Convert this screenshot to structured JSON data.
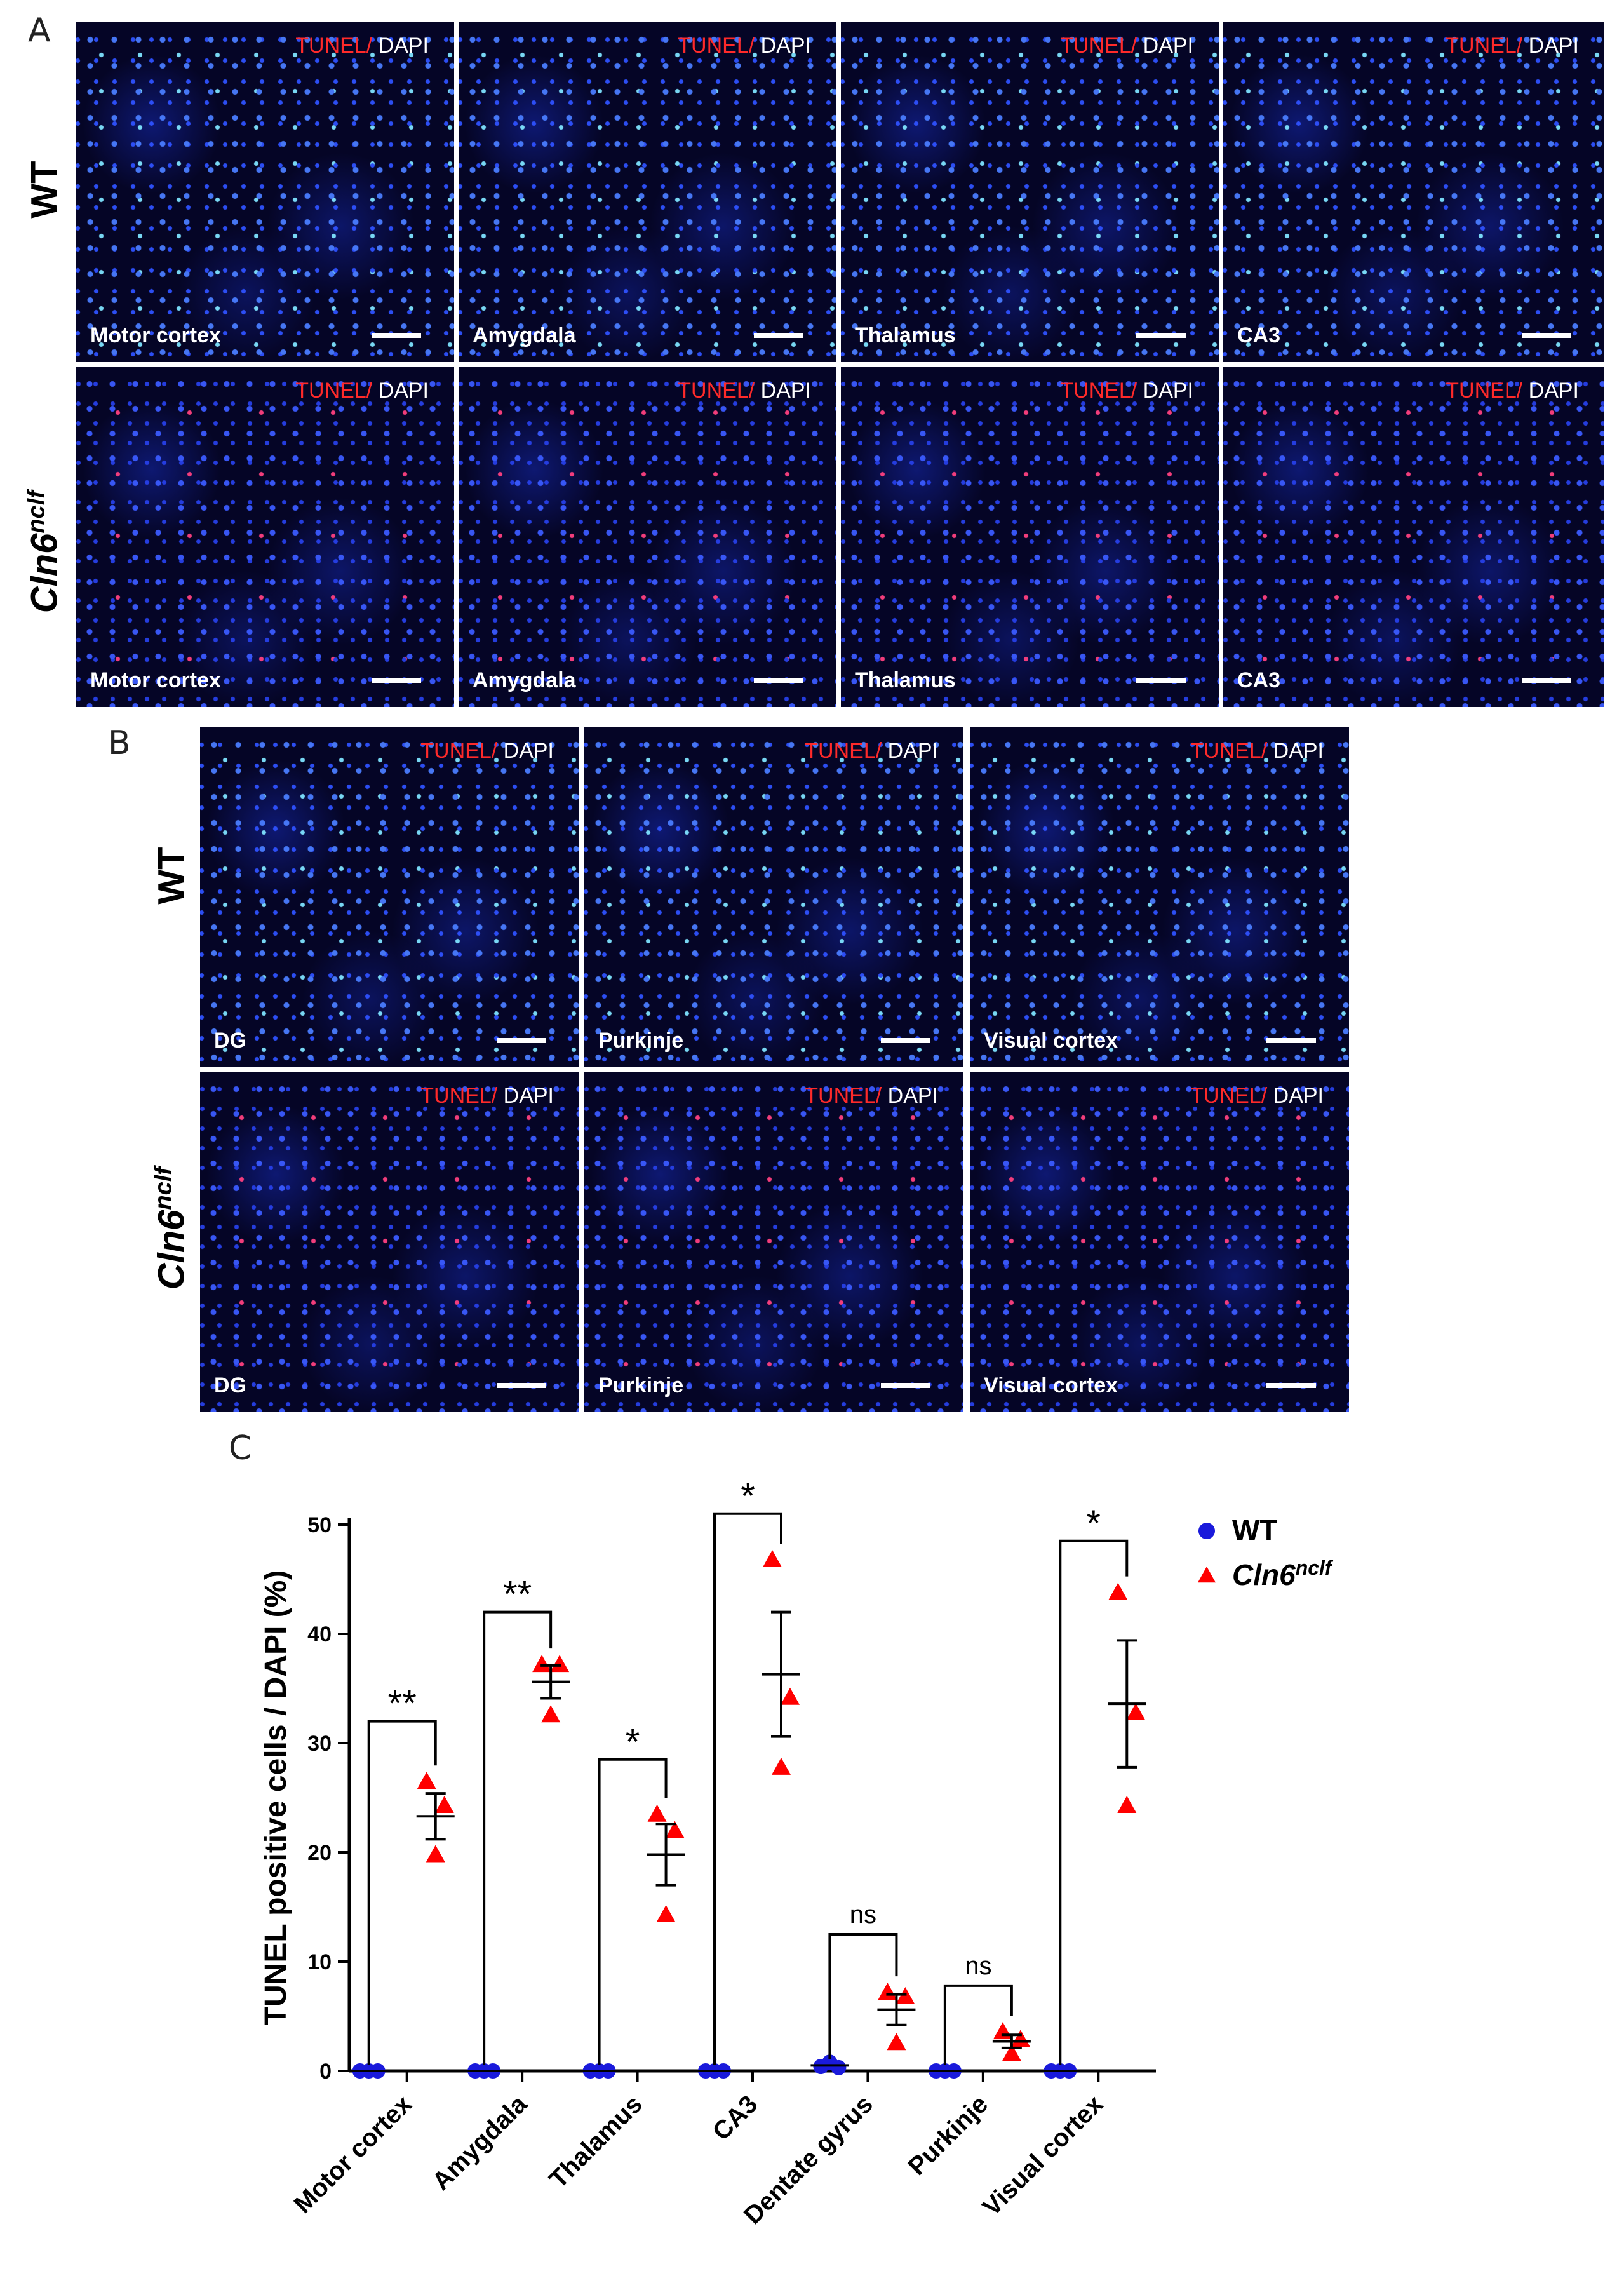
{
  "panel_labels": {
    "a": "A",
    "b": "B",
    "c": "C"
  },
  "rows": {
    "wt": "WT",
    "mutant_base": "Cln6",
    "mutant_sup": "nclf"
  },
  "stain": {
    "tunel": "TUNEL/",
    "dapi": " DAPI"
  },
  "panel_a": {
    "regions": [
      "Motor cortex",
      "Amygdala",
      "Thalamus",
      "CA3"
    ]
  },
  "panel_b": {
    "regions": [
      "DG",
      "Purkinje",
      "Visual cortex"
    ]
  },
  "colors": {
    "wt": "#1a1adb",
    "mutant": "#ff0000",
    "tunel": "#ff2a2a",
    "nuclei": "#2f52ff",
    "background": "#050526"
  },
  "chart_data": {
    "type": "scatter",
    "ylabel": "TUNEL positive cells / DAPI (%)",
    "ylim": [
      0,
      50
    ],
    "yticks": [
      0,
      10,
      20,
      30,
      40,
      50
    ],
    "categories": [
      "Motor cortex",
      "Amygdala",
      "Thalamus",
      "CA3",
      "Dentate gyrus",
      "Purkinje",
      "Visual cortex"
    ],
    "legend": {
      "wt": "WT",
      "mutant_base": "Cln6",
      "mutant_sup": "nclf",
      "position": "top-right"
    },
    "series": [
      {
        "name": "WT",
        "marker": "circle",
        "points": [
          [
            0,
            0,
            0
          ],
          [
            0,
            0,
            0
          ],
          [
            0,
            0,
            0
          ],
          [
            0,
            0,
            0
          ],
          [
            0.4,
            0.8,
            0.3
          ],
          [
            0,
            0,
            0
          ],
          [
            0,
            0,
            0
          ]
        ],
        "mean": [
          0,
          0,
          0,
          0,
          0.5,
          0,
          0
        ],
        "sem": [
          0,
          0,
          0,
          0,
          0.2,
          0,
          0
        ]
      },
      {
        "name": "Cln6nclf",
        "marker": "triangle",
        "points": [
          [
            26.5,
            24.3,
            19.8
          ],
          [
            37.2,
            37.2,
            32.6
          ],
          [
            23.5,
            22.0,
            14.3
          ],
          [
            46.8,
            34.2,
            27.8
          ],
          [
            7.2,
            6.8,
            2.6
          ],
          [
            3.6,
            2.9,
            1.6
          ],
          [
            43.8,
            32.8,
            24.3
          ]
        ],
        "mean": [
          23.3,
          35.6,
          19.8,
          36.3,
          5.6,
          2.7,
          33.6
        ],
        "sem": [
          2.1,
          1.5,
          2.8,
          5.7,
          1.4,
          0.6,
          5.8
        ]
      }
    ],
    "significance": [
      "**",
      "**",
      "*",
      "*",
      "ns",
      "ns",
      "*"
    ],
    "bracket_top": [
      32,
      42,
      28.5,
      51,
      12.5,
      7.8,
      48.5
    ]
  }
}
